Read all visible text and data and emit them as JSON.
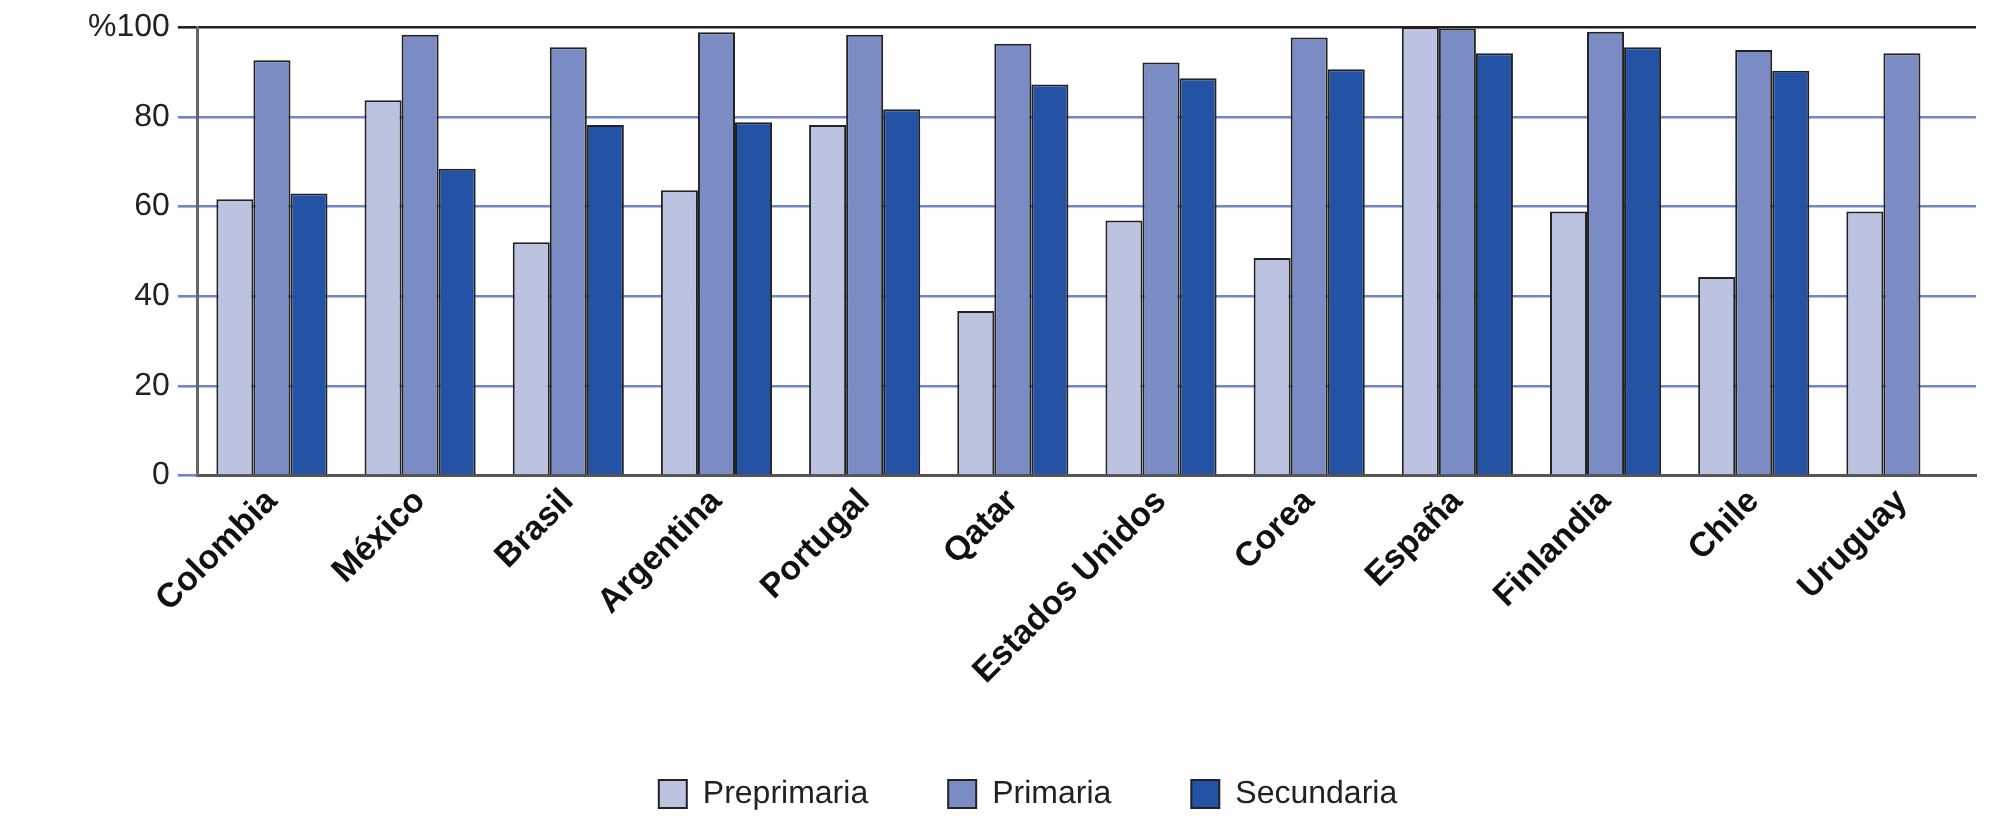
{
  "chart_data": {
    "type": "bar",
    "categories": [
      "Colombia",
      "México",
      "Brasil",
      "Argentina",
      "Portugal",
      "Qatar",
      "Estados Unidos",
      "Corea",
      "España",
      "Finlandia",
      "Chile",
      "Uruguay"
    ],
    "series": [
      {
        "name": "Preprimaria",
        "color": "#bbc3e0",
        "values": [
          61.6,
          83.7,
          52,
          63.6,
          78.2,
          36.7,
          56.9,
          48.5,
          100,
          58.9,
          44.3,
          58.9
        ]
      },
      {
        "name": "Primaria",
        "color": "#7b8cc4",
        "values": [
          92.6,
          98.3,
          95.5,
          98.9,
          98.3,
          96.3,
          92.1,
          97.7,
          99.7,
          99,
          94.9,
          94.2
        ]
      },
      {
        "name": "Secundaria",
        "color": "#2453a6",
        "values": [
          62.9,
          68.4,
          78.2,
          78.8,
          81.7,
          87.2,
          88.6,
          90.6,
          94.2,
          95.5,
          90.3,
          null
        ]
      }
    ],
    "ylim": [
      0,
      100
    ],
    "yticks": [
      0,
      20,
      40,
      60,
      80,
      {
        "value": 100,
        "label": "%100"
      }
    ],
    "grid": "y",
    "legend": "bottom"
  }
}
